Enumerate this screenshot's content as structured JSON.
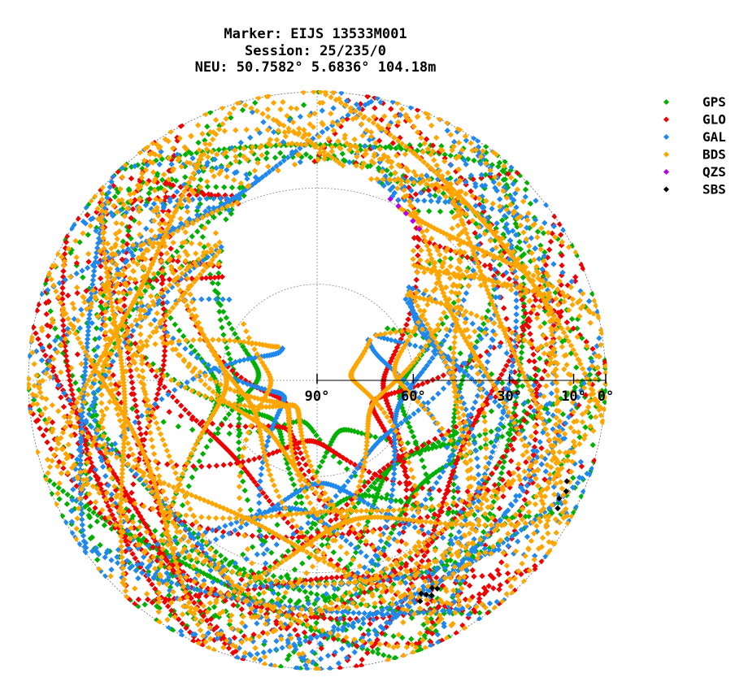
{
  "chart_data": {
    "type": "scatter",
    "projection": "polar-skyplot",
    "title_lines": [
      "Marker: EIJS 13533M001",
      "Session: 25/235/0",
      "NEU: 50.7582° 5.6836° 104.18m"
    ],
    "radial_axis": {
      "quantity": "elevation",
      "range": [
        0,
        90
      ],
      "ticks": [
        90,
        60,
        30,
        10,
        0
      ],
      "tick_labels": [
        "90°",
        "60°",
        "30°",
        "10°",
        "0°"
      ],
      "gridline_values": [
        0,
        30,
        60
      ]
    },
    "azimuth_gridlines": [
      0,
      90,
      180,
      270
    ],
    "grid": true,
    "legend": {
      "placement": "top-right",
      "entries": [
        {
          "name": "GPS",
          "color": "#00b000"
        },
        {
          "name": "GLO",
          "color": "#ee0000"
        },
        {
          "name": "GAL",
          "color": "#1e88ee"
        },
        {
          "name": "BDS",
          "color": "#ffa500"
        },
        {
          "name": "QZS",
          "color": "#b000f0"
        },
        {
          "name": "SBS",
          "color": "#000000"
        }
      ]
    },
    "series": [
      {
        "name": "GPS",
        "constellation": "GPS",
        "color": "#00b000",
        "max_elevation": 78,
        "num_tracks": 28,
        "density": 0.55,
        "seed": 11
      },
      {
        "name": "GLO",
        "constellation": "GLO",
        "color": "#ee0000",
        "max_elevation": 82,
        "num_tracks": 24,
        "density": 0.55,
        "seed": 23
      },
      {
        "name": "GAL",
        "constellation": "GAL",
        "color": "#1e88ee",
        "max_elevation": 79,
        "num_tracks": 26,
        "density": 0.6,
        "seed": 37
      },
      {
        "name": "BDS",
        "constellation": "BDS",
        "color": "#ffa500",
        "max_elevation": 85,
        "num_tracks": 44,
        "density": 0.7,
        "seed": 53
      },
      {
        "name": "QZS",
        "constellation": "QZS",
        "color": "#b000f0",
        "points": [
          [
            25,
            30
          ],
          [
            28,
            31
          ],
          [
            31,
            32
          ],
          [
            34,
            33
          ],
          [
            22,
            29
          ]
        ]
      },
      {
        "name": "SBS",
        "constellation": "SBS",
        "color": "#000000",
        "points": [
          [
            112,
            6
          ],
          [
            114,
            5
          ],
          [
            116,
            6
          ],
          [
            118,
            5
          ],
          [
            150,
            15
          ],
          [
            151,
            16
          ],
          [
            152,
            14
          ],
          [
            153,
            15
          ],
          [
            154,
            16
          ],
          [
            155,
            14
          ]
        ]
      }
    ]
  }
}
